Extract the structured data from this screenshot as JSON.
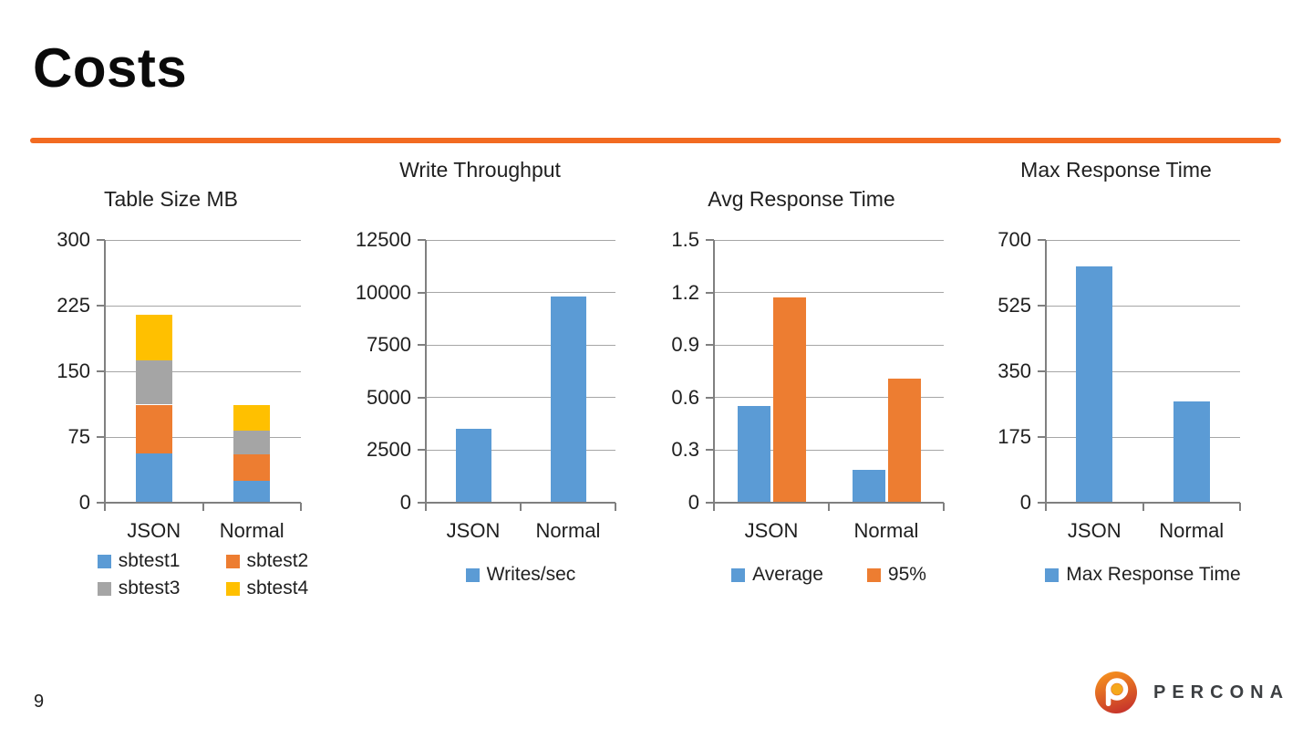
{
  "slide": {
    "title": "Costs",
    "page_number": "9",
    "accent_color": "#F26B21"
  },
  "logo": {
    "text": "PERCONA",
    "colors": {
      "gradient_top": "#F7941E",
      "gradient_bottom": "#C7352B",
      "dot": "#F5A81C",
      "text": "#3C3F42"
    }
  },
  "chart_style": {
    "bar_blue": "#5B9BD5",
    "bar_orange": "#ED7D31",
    "bar_gray": "#A5A5A5",
    "bar_yellow": "#FFC000",
    "gridline": "#A6A6A6",
    "axis": "#808080"
  },
  "chart_data": [
    {
      "type": "bar",
      "stacked": true,
      "title": "Table Size MB",
      "categories": [
        "JSON",
        "Normal"
      ],
      "series": [
        {
          "name": "sbtest1",
          "color": "#5B9BD5",
          "values": [
            56,
            25
          ]
        },
        {
          "name": "sbtest2",
          "color": "#ED7D31",
          "values": [
            56,
            30
          ]
        },
        {
          "name": "sbtest3",
          "color": "#A5A5A5",
          "values": [
            51,
            27
          ]
        },
        {
          "name": "sbtest4",
          "color": "#FFC000",
          "values": [
            52,
            29
          ]
        }
      ],
      "ylim": [
        0,
        300
      ],
      "yticks": [
        300,
        225,
        150,
        75,
        0
      ],
      "grid": true,
      "legend_position": "bottom"
    },
    {
      "type": "bar",
      "stacked": false,
      "title": "Write Throughput",
      "categories": [
        "JSON",
        "Normal"
      ],
      "series": [
        {
          "name": "Writes/sec",
          "color": "#5B9BD5",
          "values": [
            3500,
            9800
          ]
        }
      ],
      "ylim": [
        0,
        12500
      ],
      "yticks": [
        12500,
        10000,
        7500,
        5000,
        2500,
        0
      ],
      "grid": true,
      "legend_position": "bottom"
    },
    {
      "type": "bar",
      "stacked": false,
      "title": "Avg Response Time",
      "categories": [
        "JSON",
        "Normal"
      ],
      "series": [
        {
          "name": "Average",
          "color": "#5B9BD5",
          "values": [
            0.55,
            0.19
          ]
        },
        {
          "name": "95%",
          "color": "#ED7D31",
          "values": [
            1.17,
            0.71
          ]
        }
      ],
      "ylim": [
        0,
        1.5
      ],
      "yticks": [
        1.5,
        1.2,
        0.9,
        0.6,
        0.3,
        0
      ],
      "grid": true,
      "legend_position": "bottom"
    },
    {
      "type": "bar",
      "stacked": false,
      "title": "Max Response Time",
      "categories": [
        "JSON",
        "Normal"
      ],
      "series": [
        {
          "name": "Max Response Time",
          "color": "#5B9BD5",
          "values": [
            630,
            270
          ]
        }
      ],
      "ylim": [
        0,
        700
      ],
      "yticks": [
        700,
        525,
        350,
        175,
        0
      ],
      "grid": true,
      "legend_position": "bottom"
    }
  ]
}
